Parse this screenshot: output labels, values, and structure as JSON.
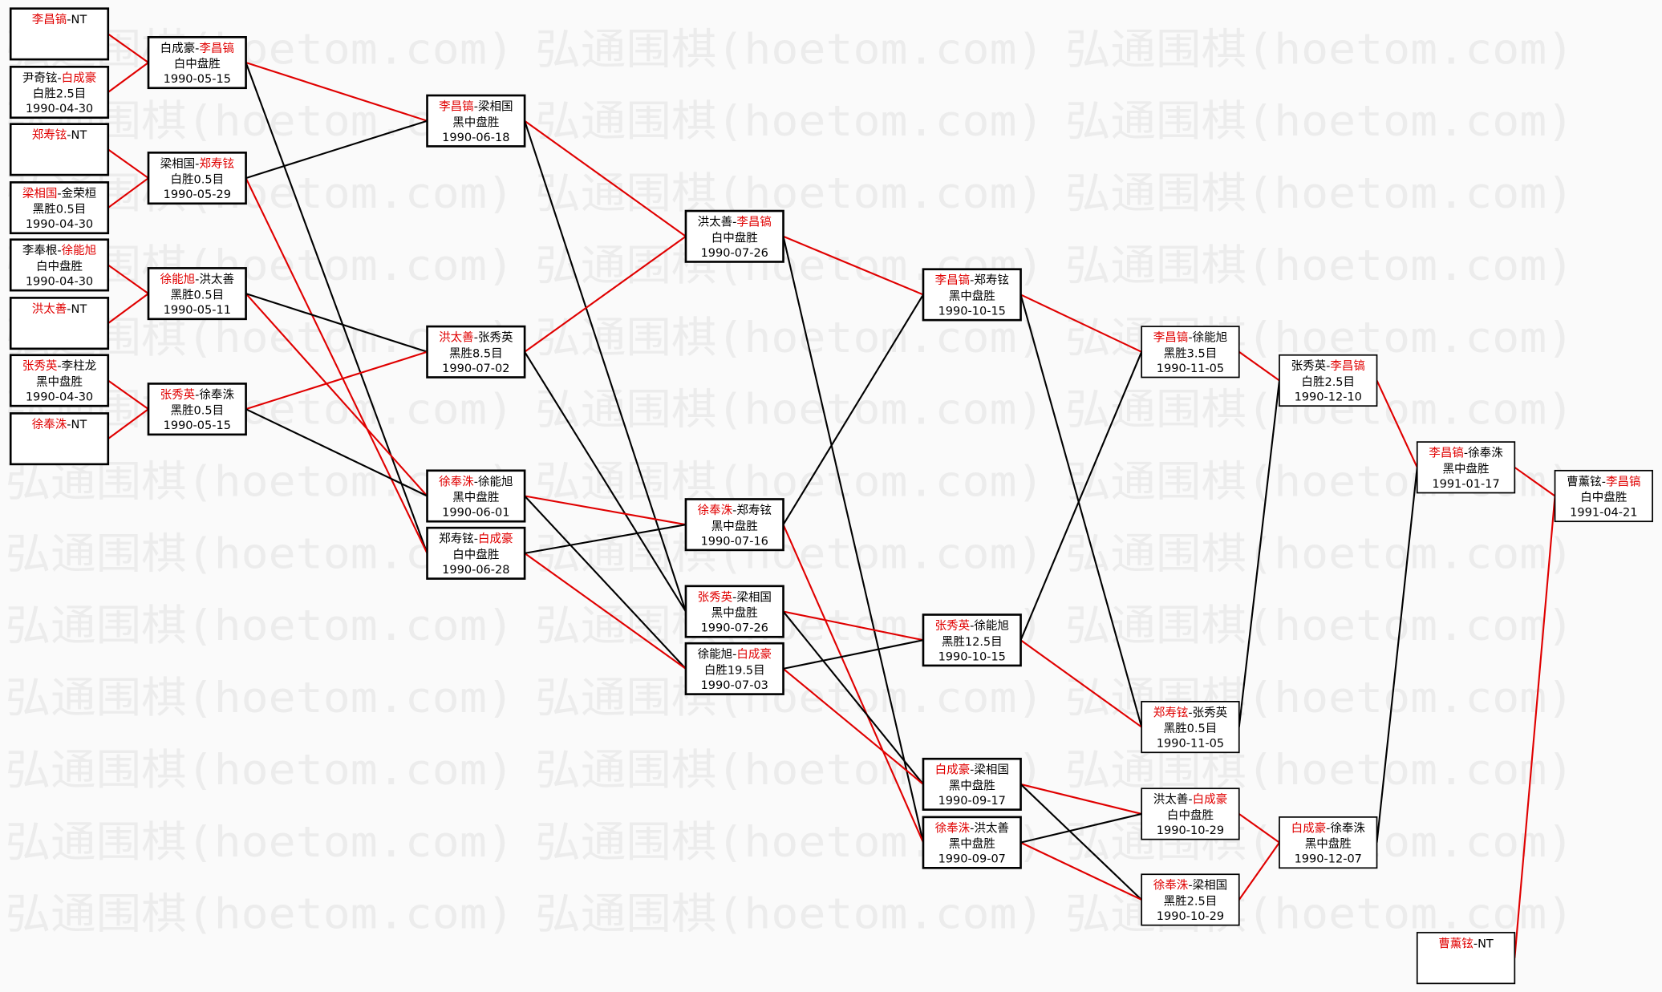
{
  "watermark": "弘通围棋(hoetom.com)",
  "colors": {
    "winner": "#e00000",
    "loser": "#000000",
    "background": "#fafafa"
  },
  "games": [
    {
      "black": "李昌镐",
      "white": "NT",
      "winner": "black",
      "result": "",
      "date": ""
    },
    {
      "black": "尹奇铉",
      "white": "白成豪",
      "winner": "white",
      "result": "白胜2.5目",
      "date": "1990-04-30"
    },
    {
      "black": "郑寿铉",
      "white": "NT",
      "winner": "black",
      "result": "",
      "date": ""
    },
    {
      "black": "梁相国",
      "white": "金荣桓",
      "winner": "black",
      "result": "黑胜0.5目",
      "date": "1990-04-30"
    },
    {
      "black": "李奉根",
      "white": "徐能旭",
      "winner": "white",
      "result": "白中盘胜",
      "date": "1990-04-30"
    },
    {
      "black": "洪太善",
      "white": "NT",
      "winner": "black",
      "result": "",
      "date": ""
    },
    {
      "black": "张秀英",
      "white": "李柱龙",
      "winner": "black",
      "result": "黑中盘胜",
      "date": "1990-04-30"
    },
    {
      "black": "徐奉洙",
      "white": "NT",
      "winner": "black",
      "result": "",
      "date": ""
    },
    {
      "black": "白成豪",
      "white": "李昌镐",
      "winner": "white",
      "result": "白中盘胜",
      "date": "1990-05-15"
    },
    {
      "black": "梁相国",
      "white": "郑寿铉",
      "winner": "white",
      "result": "白胜0.5目",
      "date": "1990-05-29"
    },
    {
      "black": "徐能旭",
      "white": "洪太善",
      "winner": "black",
      "result": "黑胜0.5目",
      "date": "1990-05-11"
    },
    {
      "black": "张秀英",
      "white": "徐奉洙",
      "winner": "black",
      "result": "黑胜0.5目",
      "date": "1990-05-15"
    },
    {
      "black": "李昌镐",
      "white": "梁相国",
      "winner": "black",
      "result": "黑中盘胜",
      "date": "1990-06-18"
    },
    {
      "black": "洪太善",
      "white": "张秀英",
      "winner": "black",
      "result": "黑胜8.5目",
      "date": "1990-07-02"
    },
    {
      "black": "徐奉洙",
      "white": "徐能旭",
      "winner": "black",
      "result": "黑中盘胜",
      "date": "1990-06-01"
    },
    {
      "black": "郑寿铉",
      "white": "白成豪",
      "winner": "white",
      "result": "白中盘胜",
      "date": "1990-06-28"
    },
    {
      "black": "洪太善",
      "white": "李昌镐",
      "winner": "white",
      "result": "白中盘胜",
      "date": "1990-07-26"
    },
    {
      "black": "徐奉洙",
      "white": "郑寿铉",
      "winner": "black",
      "result": "黑中盘胜",
      "date": "1990-07-16"
    },
    {
      "black": "张秀英",
      "white": "梁相国",
      "winner": "black",
      "result": "黑中盘胜",
      "date": "1990-07-26"
    },
    {
      "black": "徐能旭",
      "white": "白成豪",
      "winner": "white",
      "result": "白胜19.5目",
      "date": "1990-07-03"
    },
    {
      "black": "李昌镐",
      "white": "郑寿铉",
      "winner": "black",
      "result": "黑中盘胜",
      "date": "1990-10-15"
    },
    {
      "black": "张秀英",
      "white": "徐能旭",
      "winner": "black",
      "result": "黑胜12.5目",
      "date": "1990-10-15"
    },
    {
      "black": "白成豪",
      "white": "梁相国",
      "winner": "black",
      "result": "黑中盘胜",
      "date": "1990-09-17"
    },
    {
      "black": "徐奉洙",
      "white": "洪太善",
      "winner": "black",
      "result": "黑中盘胜",
      "date": "1990-09-07"
    },
    {
      "black": "李昌镐",
      "white": "徐能旭",
      "winner": "black",
      "result": "黑胜3.5目",
      "date": "1990-11-05"
    },
    {
      "black": "郑寿铉",
      "white": "张秀英",
      "winner": "black",
      "result": "黑胜0.5目",
      "date": "1990-11-05"
    },
    {
      "black": "洪太善",
      "white": "白成豪",
      "winner": "white",
      "result": "白中盘胜",
      "date": "1990-10-29"
    },
    {
      "black": "徐奉洙",
      "white": "梁相国",
      "winner": "black",
      "result": "黑胜2.5目",
      "date": "1990-10-29"
    },
    {
      "black": "张秀英",
      "white": "李昌镐",
      "winner": "white",
      "result": "白胜2.5目",
      "date": "1990-12-10"
    },
    {
      "black": "白成豪",
      "white": "徐奉洙",
      "winner": "black",
      "result": "黑中盘胜",
      "date": "1990-12-07"
    },
    {
      "black": "李昌镐",
      "white": "徐奉洙",
      "winner": "black",
      "result": "黑中盘胜",
      "date": "1991-01-17"
    },
    {
      "black": "曹薰铉",
      "white": "NT",
      "winner": "black",
      "result": "",
      "date": ""
    },
    {
      "black": "曹薰铉",
      "white": "李昌镐",
      "winner": "white",
      "result": "白中盘胜",
      "date": "1991-04-21"
    }
  ],
  "links": [
    {
      "from": 0,
      "to": 8,
      "type": "winner"
    },
    {
      "from": 1,
      "to": 8,
      "type": "winner"
    },
    {
      "from": 2,
      "to": 9,
      "type": "winner"
    },
    {
      "from": 3,
      "to": 9,
      "type": "winner"
    },
    {
      "from": 4,
      "to": 10,
      "type": "winner"
    },
    {
      "from": 5,
      "to": 10,
      "type": "winner"
    },
    {
      "from": 6,
      "to": 11,
      "type": "winner"
    },
    {
      "from": 7,
      "to": 11,
      "type": "winner"
    },
    {
      "from": 8,
      "to": 12,
      "type": "winner"
    },
    {
      "from": 8,
      "to": 15,
      "type": "loser"
    },
    {
      "from": 9,
      "to": 15,
      "type": "winner"
    },
    {
      "from": 9,
      "to": 12,
      "type": "loser"
    },
    {
      "from": 10,
      "to": 14,
      "type": "winner"
    },
    {
      "from": 10,
      "to": 13,
      "type": "loser"
    },
    {
      "from": 11,
      "to": 13,
      "type": "winner"
    },
    {
      "from": 11,
      "to": 14,
      "type": "loser"
    },
    {
      "from": 12,
      "to": 16,
      "type": "winner"
    },
    {
      "from": 12,
      "to": 18,
      "type": "loser"
    },
    {
      "from": 13,
      "to": 16,
      "type": "winner"
    },
    {
      "from": 13,
      "to": 18,
      "type": "loser"
    },
    {
      "from": 14,
      "to": 17,
      "type": "winner"
    },
    {
      "from": 14,
      "to": 19,
      "type": "loser"
    },
    {
      "from": 15,
      "to": 19,
      "type": "winner"
    },
    {
      "from": 15,
      "to": 17,
      "type": "loser"
    },
    {
      "from": 16,
      "to": 20,
      "type": "winner"
    },
    {
      "from": 16,
      "to": 23,
      "type": "loser"
    },
    {
      "from": 17,
      "to": 23,
      "type": "winner"
    },
    {
      "from": 17,
      "to": 20,
      "type": "loser"
    },
    {
      "from": 18,
      "to": 21,
      "type": "winner"
    },
    {
      "from": 18,
      "to": 22,
      "type": "loser"
    },
    {
      "from": 19,
      "to": 22,
      "type": "winner"
    },
    {
      "from": 19,
      "to": 21,
      "type": "loser"
    },
    {
      "from": 20,
      "to": 24,
      "type": "winner"
    },
    {
      "from": 20,
      "to": 25,
      "type": "loser"
    },
    {
      "from": 21,
      "to": 25,
      "type": "winner"
    },
    {
      "from": 21,
      "to": 24,
      "type": "loser"
    },
    {
      "from": 22,
      "to": 26,
      "type": "winner"
    },
    {
      "from": 22,
      "to": 27,
      "type": "loser"
    },
    {
      "from": 23,
      "to": 27,
      "type": "winner"
    },
    {
      "from": 23,
      "to": 26,
      "type": "loser"
    },
    {
      "from": 24,
      "to": 28,
      "type": "winner"
    },
    {
      "from": 25,
      "to": 28,
      "type": "loser"
    },
    {
      "from": 26,
      "to": 29,
      "type": "winner"
    },
    {
      "from": 27,
      "to": 29,
      "type": "winner"
    },
    {
      "from": 28,
      "to": 30,
      "type": "winner"
    },
    {
      "from": 29,
      "to": 30,
      "type": "loser"
    },
    {
      "from": 30,
      "to": 32,
      "type": "winner"
    },
    {
      "from": 31,
      "to": 32,
      "type": "winner"
    }
  ]
}
